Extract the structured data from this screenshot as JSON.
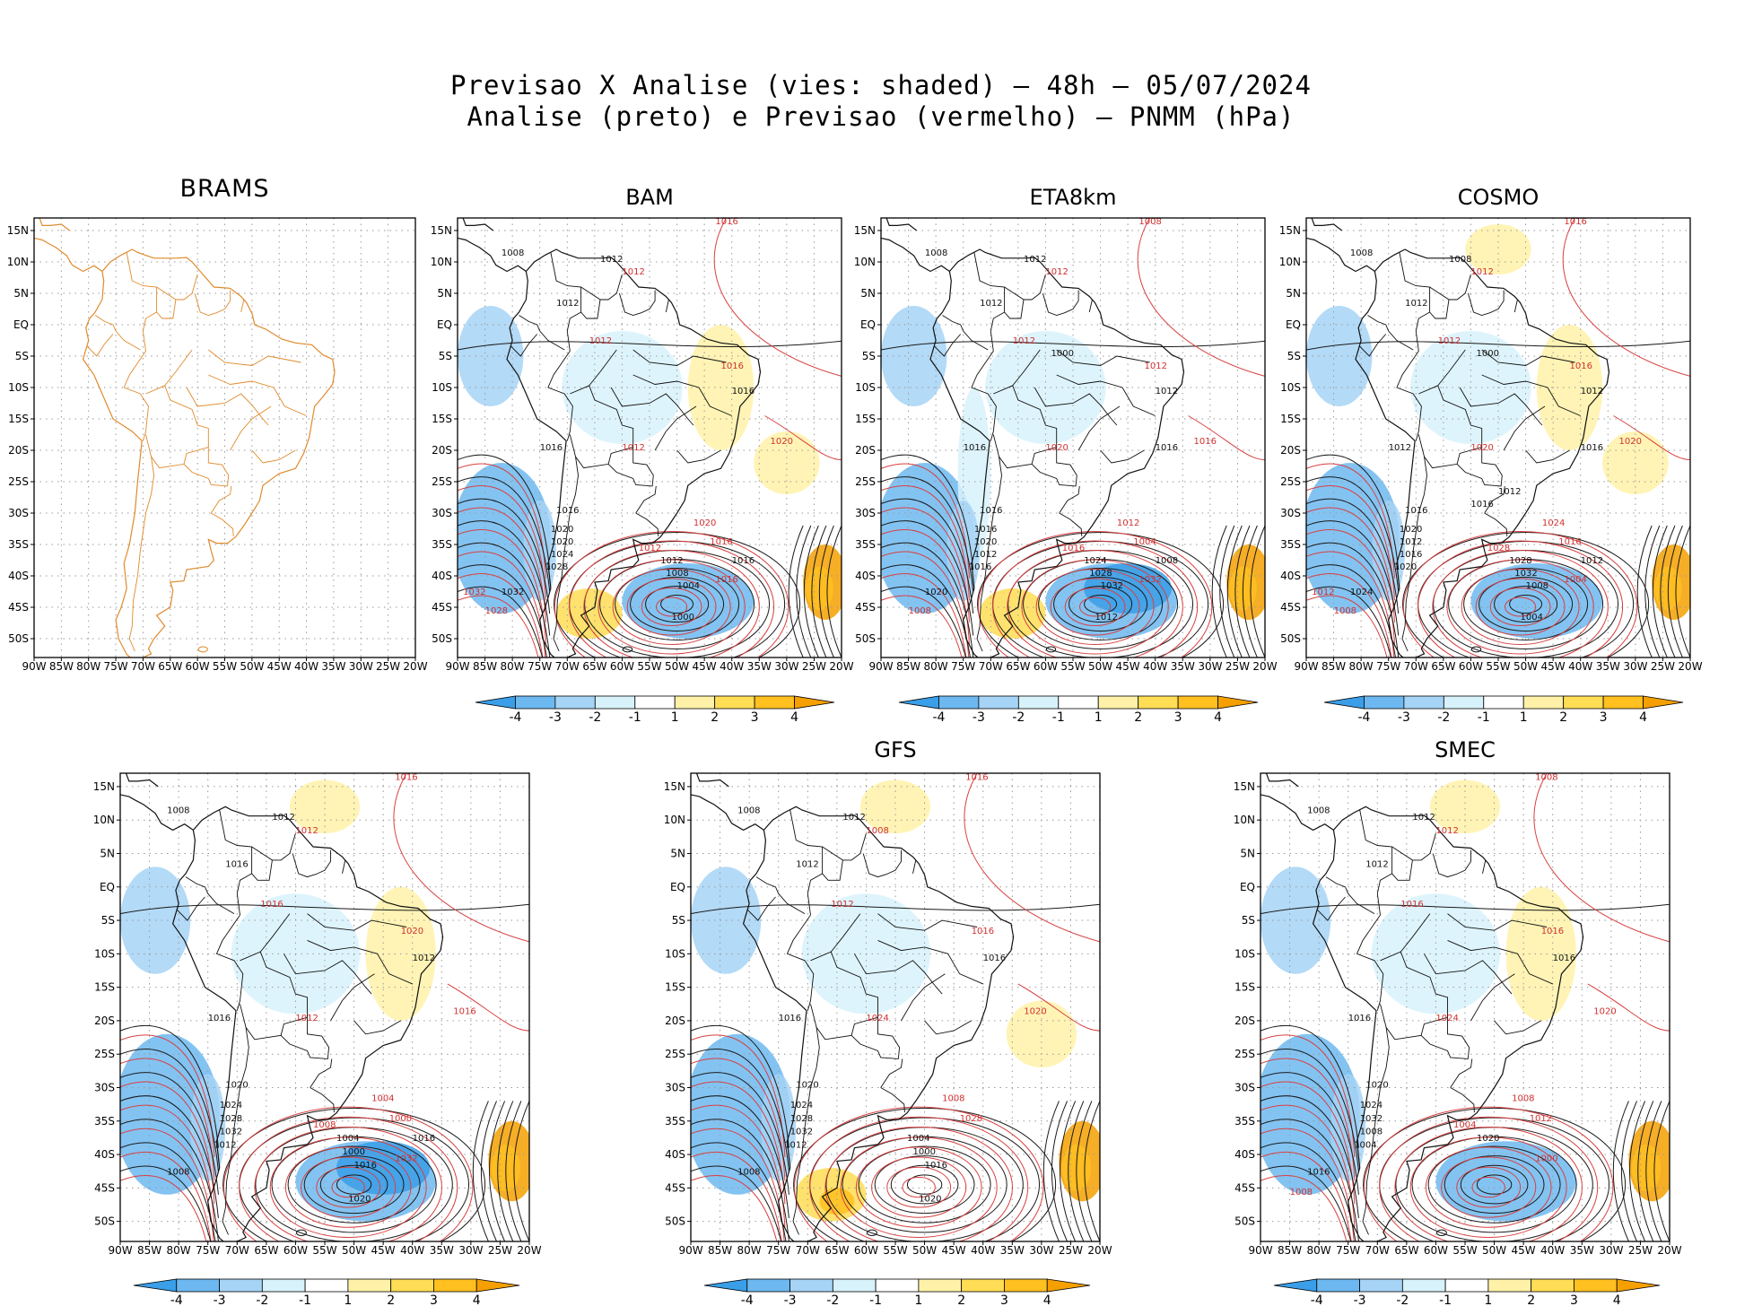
{
  "header": {
    "line1": "Previsao X Analise (vies: shaded) – 48h – 05/07/2024",
    "line2": "Analise (preto) e Previsao (vermelho) – PNMM (hPa)"
  },
  "axes": {
    "lon_labels": [
      "90W",
      "85W",
      "80W",
      "75W",
      "70W",
      "65W",
      "60W",
      "55W",
      "50W",
      "45W",
      "40W",
      "35W",
      "30W",
      "25W",
      "20W"
    ],
    "lat_labels": [
      "15N",
      "10N",
      "5N",
      "EQ",
      "5S",
      "10S",
      "15S",
      "20S",
      "25S",
      "30S",
      "35S",
      "40S",
      "45S",
      "50S"
    ]
  },
  "colorbar": {
    "labels": [
      "-4",
      "-3",
      "-2",
      "-1",
      "1",
      "2",
      "3",
      "4"
    ],
    "colors": [
      "#3a9ee8",
      "#6db8f0",
      "#a6d4f6",
      "#d8f2fb",
      "#ffffff",
      "#fff2a8",
      "#ffdd55",
      "#ffc020",
      "#f5a000"
    ]
  },
  "colors": {
    "analysis_contour": "#1a1a1a",
    "forecast_contour": "#d84040",
    "coast_brams": "#e08a2c",
    "grid": "#9a9a9a"
  },
  "panels": [
    {
      "id": "brams",
      "title": "BRAMS",
      "has_bias": false,
      "has_colorbar": false,
      "isobar_black": [],
      "isobar_red": []
    },
    {
      "id": "bam",
      "title": "BAM",
      "has_bias": true,
      "has_colorbar": true,
      "isobar_black": [
        "1008",
        "1012",
        "1012",
        "1016",
        "1016",
        "1016",
        "1020",
        "1020",
        "1024",
        "1028",
        "1032",
        "1012",
        "1008",
        "1004",
        "1000",
        "1016"
      ],
      "isobar_red": [
        "1016",
        "1012",
        "1012",
        "1016",
        "1020",
        "1012",
        "1016",
        "1020",
        "1012",
        "1016",
        "1028",
        "1032"
      ]
    },
    {
      "id": "eta8km",
      "title": "ETA8km",
      "has_bias": true,
      "has_colorbar": true,
      "isobar_black": [
        "1008",
        "1012",
        "1012",
        "1012",
        "1016",
        "1016",
        "1016",
        "1020",
        "1012",
        "1016",
        "1020",
        "1024",
        "1028",
        "1032",
        "1012",
        "1008",
        "1000",
        "1016"
      ],
      "isobar_red": [
        "1008",
        "1012",
        "1012",
        "1012",
        "1016",
        "1020",
        "1004",
        "1012",
        "1016",
        "1032",
        "1008"
      ]
    },
    {
      "id": "cosmo",
      "title": "COSMO",
      "has_bias": true,
      "has_colorbar": true,
      "isobar_black": [
        "1008",
        "1008",
        "1012",
        "1012",
        "1012",
        "1016",
        "1020",
        "1012",
        "1016",
        "1020",
        "1024",
        "1028",
        "1032",
        "1008",
        "1004",
        "1012",
        "1000",
        "1016",
        "1012",
        "1016"
      ],
      "isobar_red": [
        "1016",
        "1012",
        "1012",
        "1016",
        "1020",
        "1020",
        "1016",
        "1024",
        "1028",
        "1004",
        "1008",
        "1012"
      ]
    },
    {
      "id": "bottom-left",
      "title": "",
      "has_bias": true,
      "has_colorbar": true,
      "isobar_black": [
        "1008",
        "1012",
        "1016",
        "1012",
        "1016",
        "1020",
        "1024",
        "1028",
        "1032",
        "1012",
        "1008",
        "1004",
        "1000",
        "1016",
        "1020",
        "1016"
      ],
      "isobar_red": [
        "1016",
        "1012",
        "1016",
        "1020",
        "1016",
        "1012",
        "1000",
        "1004",
        "1008",
        "1032"
      ]
    },
    {
      "id": "gfs",
      "title": "GFS",
      "has_bias": true,
      "has_colorbar": true,
      "isobar_black": [
        "1008",
        "1012",
        "1012",
        "1016",
        "1016",
        "1020",
        "1024",
        "1028",
        "1032",
        "1012",
        "1008",
        "1004",
        "1000",
        "1016",
        "1020"
      ],
      "isobar_red": [
        "1016",
        "1008",
        "1012",
        "1016",
        "1020",
        "1024",
        "1028",
        "1008"
      ]
    },
    {
      "id": "smec",
      "title": "SMEC",
      "has_bias": true,
      "has_colorbar": true,
      "isobar_black": [
        "1008",
        "1012",
        "1012",
        "1016",
        "1016",
        "1020",
        "1024",
        "1032",
        "1008",
        "1004",
        "1016",
        "1020"
      ],
      "isobar_red": [
        "1008",
        "1012",
        "1016",
        "1016",
        "1020",
        "1024",
        "1012",
        "1008",
        "1004",
        "1000",
        "1008"
      ]
    }
  ]
}
